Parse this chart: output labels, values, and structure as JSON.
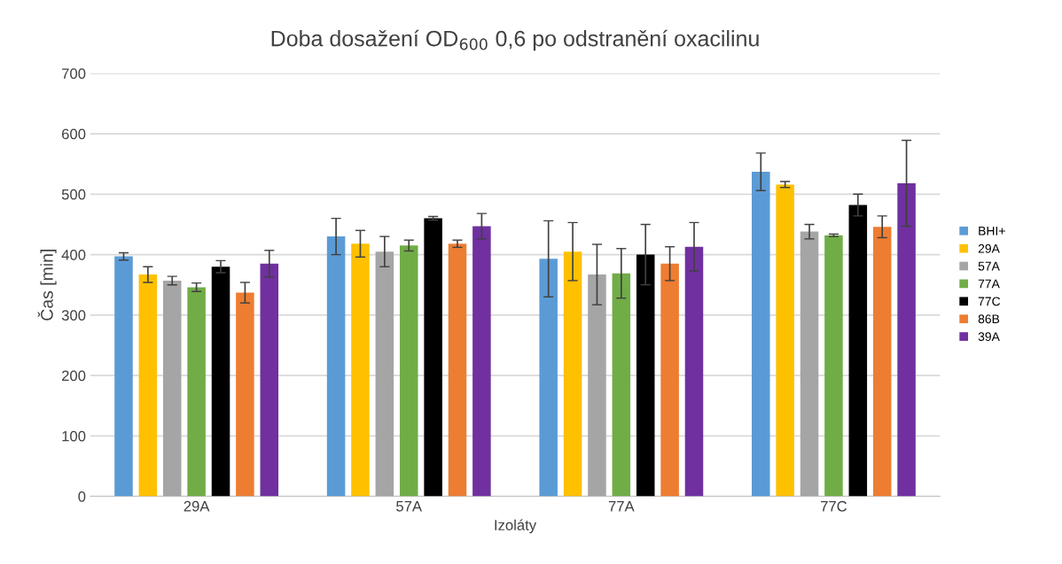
{
  "chart_data": {
    "type": "bar",
    "title": "Doba dosažení OD$_{600}$ 0,6 po odstranění oxacilinu",
    "xlabel": "Izoláty",
    "ylabel": "Čas [min]",
    "categories": [
      "29A",
      "57A",
      "77A",
      "77C"
    ],
    "series": [
      {
        "name": "BHI+",
        "color": "#5b9bd5",
        "values": [
          397,
          430,
          393,
          537
        ],
        "errors": [
          6,
          30,
          63,
          31
        ]
      },
      {
        "name": "29A",
        "color": "#ffc000",
        "values": [
          367,
          418,
          405,
          516
        ],
        "errors": [
          13,
          22,
          48,
          5
        ]
      },
      {
        "name": "57A",
        "color": "#a5a5a5",
        "values": [
          357,
          405,
          367,
          438
        ],
        "errors": [
          7,
          25,
          50,
          12
        ]
      },
      {
        "name": "77A",
        "color": "#70ad47",
        "values": [
          346,
          415,
          369,
          432
        ],
        "errors": [
          7,
          9,
          41,
          2
        ]
      },
      {
        "name": "77C",
        "color": "#000000",
        "values": [
          380,
          460,
          400,
          482
        ],
        "errors": [
          10,
          3,
          50,
          18
        ]
      },
      {
        "name": "86B",
        "color": "#ed7d31",
        "values": [
          337,
          418,
          385,
          446
        ],
        "errors": [
          17,
          6,
          28,
          18
        ]
      },
      {
        "name": "39A",
        "color": "#7030a0",
        "values": [
          385,
          447,
          413,
          518
        ],
        "errors": [
          22,
          21,
          40,
          71
        ]
      }
    ],
    "ylim": [
      0,
      700
    ],
    "yticks": [
      0,
      100,
      200,
      300,
      400,
      500,
      600,
      700
    ],
    "grid": "y",
    "legend": "right"
  }
}
